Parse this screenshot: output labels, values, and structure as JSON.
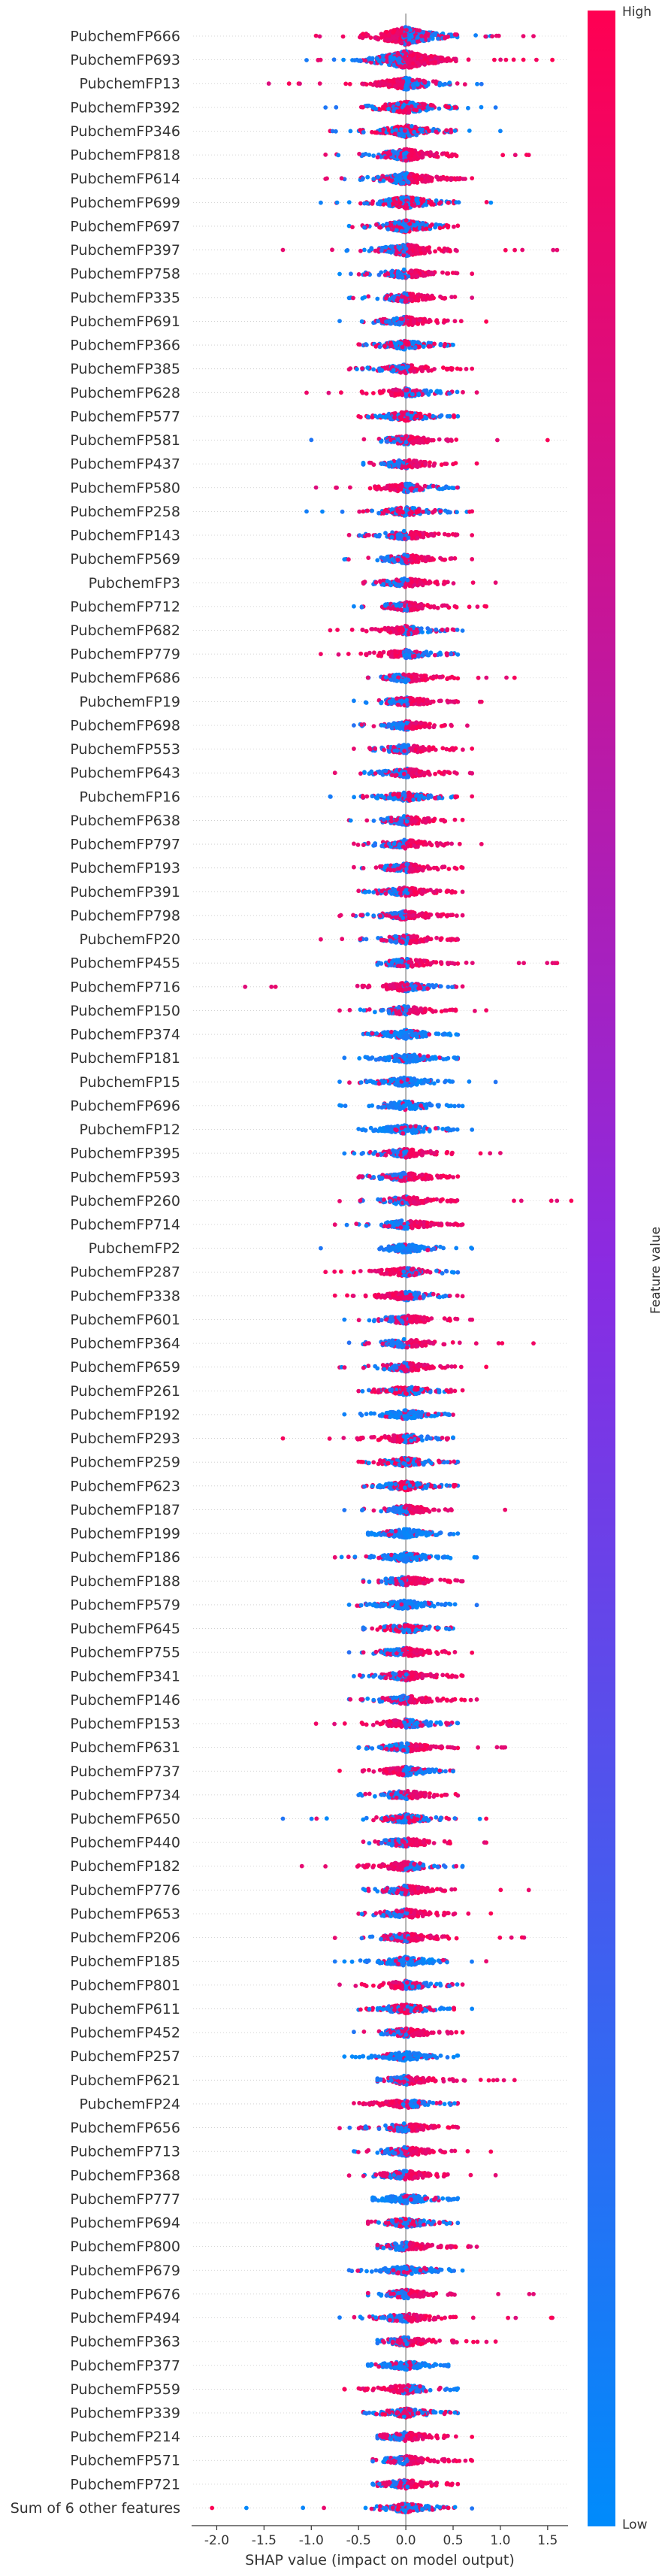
{
  "chart_data": {
    "type": "scatter",
    "subtype": "shap-beeswarm-summary",
    "xlabel": "SHAP value (impact on model output)",
    "xlim": [
      -2.25,
      1.7
    ],
    "xticks": [
      "-2.0",
      "-1.5",
      "-1.0",
      "-0.5",
      "0.0",
      "0.5",
      "1.0",
      "1.5"
    ],
    "xtick_values": [
      -2.0,
      -1.5,
      -1.0,
      -0.5,
      0.0,
      0.5,
      1.0,
      1.5
    ],
    "grid": false,
    "colorbar": {
      "label": "Feature value",
      "high": "High",
      "low": "Low",
      "color_high": "#ff0052",
      "color_mid": "#8a2be2",
      "color_low": "#008bfb"
    },
    "features": [
      {
        "name": "PubchemFP666",
        "min": -0.95,
        "max": 1.35,
        "hi_side": "neg",
        "density": "huge"
      },
      {
        "name": "PubchemFP693",
        "min": -1.05,
        "max": 1.55,
        "hi_side": "pos",
        "density": "huge"
      },
      {
        "name": "PubchemFP13",
        "min": -1.45,
        "max": 0.8,
        "hi_side": "neg",
        "density": "high"
      },
      {
        "name": "PubchemFP392",
        "min": -0.85,
        "max": 0.95,
        "hi_side": "mixed",
        "density": "high"
      },
      {
        "name": "PubchemFP346",
        "min": -0.8,
        "max": 1.0,
        "hi_side": "mixed",
        "density": "high"
      },
      {
        "name": "PubchemFP818",
        "min": -0.85,
        "max": 1.3,
        "hi_side": "pos",
        "density": "high"
      },
      {
        "name": "PubchemFP614",
        "min": -0.85,
        "max": 0.7,
        "hi_side": "pos",
        "density": "high"
      },
      {
        "name": "PubchemFP699",
        "min": -0.9,
        "max": 0.9,
        "hi_side": "mixed",
        "density": "high"
      },
      {
        "name": "PubchemFP697",
        "min": -0.6,
        "max": 0.55,
        "hi_side": "mixed",
        "density": "high"
      },
      {
        "name": "PubchemFP397",
        "min": -1.3,
        "max": 1.6,
        "hi_side": "pos",
        "density": "high"
      },
      {
        "name": "PubchemFP758",
        "min": -0.7,
        "max": 0.7,
        "hi_side": "pos",
        "density": "mid"
      },
      {
        "name": "PubchemFP335",
        "min": -0.6,
        "max": 0.7,
        "hi_side": "pos",
        "density": "mid"
      },
      {
        "name": "PubchemFP691",
        "min": -0.7,
        "max": 0.85,
        "hi_side": "pos",
        "density": "mid"
      },
      {
        "name": "PubchemFP366",
        "min": -0.5,
        "max": 0.5,
        "hi_side": "mixed",
        "density": "mid"
      },
      {
        "name": "PubchemFP385",
        "min": -0.6,
        "max": 0.7,
        "hi_side": "pos",
        "density": "mid"
      },
      {
        "name": "PubchemFP628",
        "min": -1.05,
        "max": 0.75,
        "hi_side": "neg",
        "density": "mid"
      },
      {
        "name": "PubchemFP577",
        "min": -0.5,
        "max": 0.55,
        "hi_side": "mixed",
        "density": "mid"
      },
      {
        "name": "PubchemFP581",
        "min": -1.0,
        "max": 1.5,
        "hi_side": "pos",
        "density": "mid"
      },
      {
        "name": "PubchemFP437",
        "min": -0.45,
        "max": 0.75,
        "hi_side": "pos",
        "density": "mid"
      },
      {
        "name": "PubchemFP580",
        "min": -0.95,
        "max": 0.55,
        "hi_side": "neg",
        "density": "mid"
      },
      {
        "name": "PubchemFP258",
        "min": -1.05,
        "max": 0.7,
        "hi_side": "mixed",
        "density": "mid"
      },
      {
        "name": "PubchemFP143",
        "min": -0.6,
        "max": 0.7,
        "hi_side": "pos",
        "density": "mid"
      },
      {
        "name": "PubchemFP569",
        "min": -0.65,
        "max": 0.7,
        "hi_side": "pos",
        "density": "mid"
      },
      {
        "name": "PubchemFP3",
        "min": -0.45,
        "max": 0.95,
        "hi_side": "pos",
        "density": "mid"
      },
      {
        "name": "PubchemFP712",
        "min": -0.55,
        "max": 0.85,
        "hi_side": "pos",
        "density": "mid"
      },
      {
        "name": "PubchemFP682",
        "min": -0.8,
        "max": 0.6,
        "hi_side": "neg",
        "density": "mid"
      },
      {
        "name": "PubchemFP779",
        "min": -0.9,
        "max": 0.55,
        "hi_side": "neg",
        "density": "mid"
      },
      {
        "name": "PubchemFP686",
        "min": -0.4,
        "max": 1.15,
        "hi_side": "pos",
        "density": "mid"
      },
      {
        "name": "PubchemFP19",
        "min": -0.55,
        "max": 0.8,
        "hi_side": "pos",
        "density": "mid"
      },
      {
        "name": "PubchemFP698",
        "min": -0.55,
        "max": 0.65,
        "hi_side": "pos",
        "density": "mid"
      },
      {
        "name": "PubchemFP553",
        "min": -0.55,
        "max": 0.7,
        "hi_side": "pos",
        "density": "mid"
      },
      {
        "name": "PubchemFP643",
        "min": -0.75,
        "max": 0.7,
        "hi_side": "pos",
        "density": "mid"
      },
      {
        "name": "PubchemFP16",
        "min": -0.8,
        "max": 0.7,
        "hi_side": "mixed",
        "density": "mid"
      },
      {
        "name": "PubchemFP638",
        "min": -0.6,
        "max": 0.6,
        "hi_side": "pos",
        "density": "mid"
      },
      {
        "name": "PubchemFP797",
        "min": -0.55,
        "max": 0.8,
        "hi_side": "pos",
        "density": "mid"
      },
      {
        "name": "PubchemFP193",
        "min": -0.55,
        "max": 0.6,
        "hi_side": "pos",
        "density": "mid"
      },
      {
        "name": "PubchemFP391",
        "min": -0.5,
        "max": 0.6,
        "hi_side": "pos",
        "density": "mid"
      },
      {
        "name": "PubchemFP798",
        "min": -0.7,
        "max": 0.6,
        "hi_side": "pos",
        "density": "mid"
      },
      {
        "name": "PubchemFP20",
        "min": -0.9,
        "max": 0.55,
        "hi_side": "pos",
        "density": "mid"
      },
      {
        "name": "PubchemFP455",
        "min": -0.3,
        "max": 1.6,
        "hi_side": "pos",
        "density": "mid"
      },
      {
        "name": "PubchemFP716",
        "min": -1.7,
        "max": 0.6,
        "hi_side": "neg",
        "density": "mid"
      },
      {
        "name": "PubchemFP150",
        "min": -0.7,
        "max": 0.85,
        "hi_side": "pos",
        "density": "mid"
      },
      {
        "name": "PubchemFP374",
        "min": -0.45,
        "max": 0.55,
        "hi_side": "low",
        "density": "mid"
      },
      {
        "name": "PubchemFP181",
        "min": -0.65,
        "max": 0.55,
        "hi_side": "low",
        "density": "mid"
      },
      {
        "name": "PubchemFP15",
        "min": -0.7,
        "max": 0.95,
        "hi_side": "low",
        "density": "mid"
      },
      {
        "name": "PubchemFP696",
        "min": -0.7,
        "max": 0.6,
        "hi_side": "low",
        "density": "mid"
      },
      {
        "name": "PubchemFP12",
        "min": -0.5,
        "max": 0.7,
        "hi_side": "low",
        "density": "mid"
      },
      {
        "name": "PubchemFP395",
        "min": -0.65,
        "max": 1.0,
        "hi_side": "pos",
        "density": "mid"
      },
      {
        "name": "PubchemFP593",
        "min": -0.5,
        "max": 0.55,
        "hi_side": "pos",
        "density": "mid"
      },
      {
        "name": "PubchemFP260",
        "min": -0.7,
        "max": 1.75,
        "hi_side": "pos",
        "density": "mid"
      },
      {
        "name": "PubchemFP714",
        "min": -0.75,
        "max": 0.6,
        "hi_side": "pos",
        "density": "mid"
      },
      {
        "name": "PubchemFP2",
        "min": -0.9,
        "max": 0.7,
        "hi_side": "low",
        "density": "mid"
      },
      {
        "name": "PubchemFP287",
        "min": -0.85,
        "max": 0.55,
        "hi_side": "neg",
        "density": "mid"
      },
      {
        "name": "PubchemFP338",
        "min": -0.75,
        "max": 0.6,
        "hi_side": "neg",
        "density": "mid"
      },
      {
        "name": "PubchemFP601",
        "min": -0.65,
        "max": 0.7,
        "hi_side": "pos",
        "density": "mid"
      },
      {
        "name": "PubchemFP364",
        "min": -0.6,
        "max": 1.35,
        "hi_side": "pos",
        "density": "mid"
      },
      {
        "name": "PubchemFP659",
        "min": -0.7,
        "max": 0.85,
        "hi_side": "pos",
        "density": "mid"
      },
      {
        "name": "PubchemFP261",
        "min": -0.5,
        "max": 0.6,
        "hi_side": "mixed",
        "density": "mid"
      },
      {
        "name": "PubchemFP192",
        "min": -0.65,
        "max": 0.5,
        "hi_side": "low",
        "density": "mid"
      },
      {
        "name": "PubchemFP293",
        "min": -1.3,
        "max": 0.5,
        "hi_side": "neg",
        "density": "mid"
      },
      {
        "name": "PubchemFP259",
        "min": -0.5,
        "max": 0.55,
        "hi_side": "mixed",
        "density": "mid"
      },
      {
        "name": "PubchemFP623",
        "min": -0.45,
        "max": 0.55,
        "hi_side": "mixed",
        "density": "mid"
      },
      {
        "name": "PubchemFP187",
        "min": -0.65,
        "max": 1.05,
        "hi_side": "pos",
        "density": "mid"
      },
      {
        "name": "PubchemFP199",
        "min": -0.4,
        "max": 0.55,
        "hi_side": "low",
        "density": "mid"
      },
      {
        "name": "PubchemFP186",
        "min": -0.75,
        "max": 0.75,
        "hi_side": "low",
        "density": "mid"
      },
      {
        "name": "PubchemFP188",
        "min": -0.45,
        "max": 0.6,
        "hi_side": "pos",
        "density": "mid"
      },
      {
        "name": "PubchemFP579",
        "min": -0.6,
        "max": 0.75,
        "hi_side": "low",
        "density": "mid"
      },
      {
        "name": "PubchemFP645",
        "min": -0.45,
        "max": 0.5,
        "hi_side": "mixed",
        "density": "mid"
      },
      {
        "name": "PubchemFP755",
        "min": -0.6,
        "max": 0.7,
        "hi_side": "pos",
        "density": "mid"
      },
      {
        "name": "PubchemFP341",
        "min": -0.55,
        "max": 0.6,
        "hi_side": "pos",
        "density": "mid"
      },
      {
        "name": "PubchemFP146",
        "min": -0.6,
        "max": 0.75,
        "hi_side": "pos",
        "density": "mid"
      },
      {
        "name": "PubchemFP153",
        "min": -0.95,
        "max": 0.55,
        "hi_side": "neg",
        "density": "mid"
      },
      {
        "name": "PubchemFP631",
        "min": -0.5,
        "max": 1.05,
        "hi_side": "pos",
        "density": "mid"
      },
      {
        "name": "PubchemFP737",
        "min": -0.7,
        "max": 0.5,
        "hi_side": "neg",
        "density": "mid"
      },
      {
        "name": "PubchemFP734",
        "min": -0.5,
        "max": 0.55,
        "hi_side": "pos",
        "density": "mid"
      },
      {
        "name": "PubchemFP650",
        "min": -1.3,
        "max": 0.85,
        "hi_side": "mixed",
        "density": "mid"
      },
      {
        "name": "PubchemFP440",
        "min": -0.45,
        "max": 0.85,
        "hi_side": "pos",
        "density": "mid"
      },
      {
        "name": "PubchemFP182",
        "min": -1.1,
        "max": 0.6,
        "hi_side": "neg",
        "density": "mid"
      },
      {
        "name": "PubchemFP776",
        "min": -0.45,
        "max": 1.3,
        "hi_side": "pos",
        "density": "mid"
      },
      {
        "name": "PubchemFP653",
        "min": -0.5,
        "max": 0.9,
        "hi_side": "pos",
        "density": "mid"
      },
      {
        "name": "PubchemFP206",
        "min": -0.75,
        "max": 1.25,
        "hi_side": "pos",
        "density": "mid"
      },
      {
        "name": "PubchemFP185",
        "min": -0.75,
        "max": 0.85,
        "hi_side": "low",
        "density": "mid"
      },
      {
        "name": "PubchemFP801",
        "min": -0.7,
        "max": 0.6,
        "hi_side": "neg",
        "density": "mid"
      },
      {
        "name": "PubchemFP611",
        "min": -0.5,
        "max": 0.7,
        "hi_side": "mixed",
        "density": "mid"
      },
      {
        "name": "PubchemFP452",
        "min": -0.55,
        "max": 0.6,
        "hi_side": "pos",
        "density": "mid"
      },
      {
        "name": "PubchemFP257",
        "min": -0.65,
        "max": 0.55,
        "hi_side": "low",
        "density": "mid"
      },
      {
        "name": "PubchemFP621",
        "min": -0.3,
        "max": 1.15,
        "hi_side": "pos",
        "density": "mid"
      },
      {
        "name": "PubchemFP24",
        "min": -0.55,
        "max": 0.55,
        "hi_side": "neg",
        "density": "mid"
      },
      {
        "name": "PubchemFP656",
        "min": -0.7,
        "max": 0.55,
        "hi_side": "pos",
        "density": "mid"
      },
      {
        "name": "PubchemFP713",
        "min": -0.55,
        "max": 0.9,
        "hi_side": "pos",
        "density": "mid"
      },
      {
        "name": "PubchemFP368",
        "min": -0.6,
        "max": 0.95,
        "hi_side": "pos",
        "density": "mid"
      },
      {
        "name": "PubchemFP777",
        "min": -0.35,
        "max": 0.55,
        "hi_side": "low",
        "density": "mid"
      },
      {
        "name": "PubchemFP694",
        "min": -0.4,
        "max": 0.55,
        "hi_side": "mixed",
        "density": "mid"
      },
      {
        "name": "PubchemFP800",
        "min": -0.3,
        "max": 0.75,
        "hi_side": "pos",
        "density": "mid"
      },
      {
        "name": "PubchemFP679",
        "min": -0.6,
        "max": 0.6,
        "hi_side": "low",
        "density": "mid"
      },
      {
        "name": "PubchemFP676",
        "min": -0.4,
        "max": 1.35,
        "hi_side": "pos",
        "density": "mid"
      },
      {
        "name": "PubchemFP494",
        "min": -0.7,
        "max": 1.55,
        "hi_side": "pos",
        "density": "mid"
      },
      {
        "name": "PubchemFP363",
        "min": -0.3,
        "max": 0.95,
        "hi_side": "pos",
        "density": "mid"
      },
      {
        "name": "PubchemFP377",
        "min": -0.4,
        "max": 0.45,
        "hi_side": "low",
        "density": "mid"
      },
      {
        "name": "PubchemFP559",
        "min": -0.65,
        "max": 0.55,
        "hi_side": "neg",
        "density": "mid"
      },
      {
        "name": "PubchemFP339",
        "min": -0.45,
        "max": 0.55,
        "hi_side": "mixed",
        "density": "mid"
      },
      {
        "name": "PubchemFP214",
        "min": -0.3,
        "max": 0.7,
        "hi_side": "pos",
        "density": "mid"
      },
      {
        "name": "PubchemFP571",
        "min": -0.35,
        "max": 0.7,
        "hi_side": "pos",
        "density": "mid"
      },
      {
        "name": "PubchemFP721",
        "min": -0.35,
        "max": 0.55,
        "hi_side": "pos",
        "density": "mid"
      },
      {
        "name": "Sum of 6 other features",
        "min": -2.05,
        "max": 0.7,
        "hi_side": "mixed",
        "density": "mid"
      }
    ]
  }
}
